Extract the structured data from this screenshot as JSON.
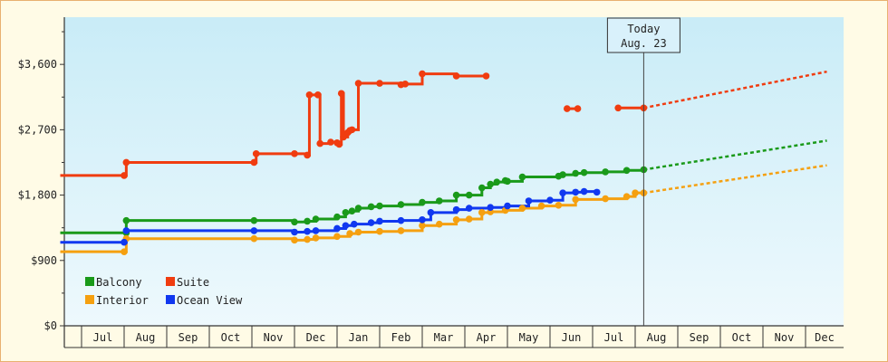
{
  "chart_data": {
    "type": "line",
    "title": "",
    "xlabel": "",
    "ylabel": "",
    "y_ticks": [
      "$0",
      "$900",
      "$1,800",
      "$2,700",
      "$3,600"
    ],
    "ylim": [
      0,
      4250
    ],
    "x_domain_months": [
      5.5,
      17.6
    ],
    "months": [
      {
        "label": "Jul",
        "idx": 6
      },
      {
        "label": "Aug",
        "idx": 7
      },
      {
        "label": "Sep",
        "idx": 8
      },
      {
        "label": "Oct",
        "idx": 9
      },
      {
        "label": "Nov",
        "idx": 10
      },
      {
        "label": "Dec",
        "idx": 11
      },
      {
        "label": "Jan",
        "idx": 12
      },
      {
        "label": "Feb",
        "idx": 13
      },
      {
        "label": "Mar",
        "idx": 14
      },
      {
        "label": "Apr",
        "idx": 15
      },
      {
        "label": "May",
        "idx": 16
      },
      {
        "label": "Jun",
        "idx": 17
      },
      {
        "label": "Jul",
        "idx": 18
      },
      {
        "label": "Aug",
        "idx": 19
      },
      {
        "label": "Sep",
        "idx": 20
      },
      {
        "label": "Oct",
        "idx": 21
      },
      {
        "label": "Nov",
        "idx": 22
      },
      {
        "label": "Dec",
        "idx": 23
      }
    ],
    "today": {
      "label": "Today",
      "date": "Aug. 23",
      "idx": 19.2
    },
    "legend_position": "bottom-left",
    "series": [
      {
        "name": "Balcony",
        "color": "#1a9a1a",
        "points": [
          [
            5.5,
            1280
          ],
          [
            7.05,
            1280
          ],
          [
            7.05,
            1450
          ],
          [
            10.05,
            1450
          ],
          [
            11.0,
            1430
          ],
          [
            11.3,
            1440
          ],
          [
            11.5,
            1470
          ],
          [
            12.0,
            1500
          ],
          [
            12.2,
            1560
          ],
          [
            12.35,
            1580
          ],
          [
            12.5,
            1620
          ],
          [
            12.8,
            1640
          ],
          [
            13.0,
            1650
          ],
          [
            13.5,
            1670
          ],
          [
            14.0,
            1700
          ],
          [
            14.4,
            1720
          ],
          [
            14.8,
            1800
          ],
          [
            15.1,
            1800
          ],
          [
            15.4,
            1900
          ],
          [
            15.6,
            1950
          ],
          [
            15.75,
            1980
          ],
          [
            15.95,
            2000
          ],
          [
            16.0,
            1990
          ],
          [
            16.35,
            2050
          ],
          [
            17.2,
            2060
          ],
          [
            17.3,
            2080
          ],
          [
            17.6,
            2100
          ],
          [
            17.8,
            2110
          ],
          [
            18.3,
            2120
          ],
          [
            18.8,
            2140
          ],
          [
            19.2,
            2150
          ]
        ],
        "forecast": [
          [
            19.2,
            2150
          ],
          [
            23.5,
            2550
          ]
        ]
      },
      {
        "name": "Suite",
        "color": "#f03c10",
        "points": [
          [
            5.5,
            2070
          ],
          [
            7.0,
            2070
          ],
          [
            7.05,
            2250
          ],
          [
            10.05,
            2250
          ],
          [
            10.1,
            2370
          ],
          [
            11.0,
            2370
          ],
          [
            11.3,
            2350
          ],
          [
            11.35,
            3180
          ],
          [
            11.55,
            3180
          ],
          [
            11.6,
            2510
          ],
          [
            11.85,
            2530
          ],
          [
            12.0,
            2520
          ],
          [
            12.05,
            2500
          ],
          [
            12.1,
            3200
          ],
          [
            12.15,
            2600
          ],
          [
            12.25,
            2660
          ],
          [
            12.3,
            2690
          ],
          [
            12.35,
            2700
          ],
          [
            12.5,
            3340
          ],
          [
            13.0,
            3340
          ],
          [
            13.5,
            3320
          ],
          [
            13.6,
            3330
          ],
          [
            14.0,
            3470
          ],
          [
            14.8,
            3440
          ],
          [
            15.5,
            3440
          ]
        ],
        "segment2": [
          [
            17.4,
            2990
          ],
          [
            17.65,
            2990
          ]
        ],
        "segment3": [
          [
            18.6,
            3000
          ],
          [
            19.2,
            3000
          ]
        ],
        "forecast": [
          [
            19.2,
            3000
          ],
          [
            23.5,
            3500
          ]
        ]
      },
      {
        "name": "Interior",
        "color": "#f5a010",
        "points": [
          [
            5.5,
            1020
          ],
          [
            7.0,
            1020
          ],
          [
            7.05,
            1200
          ],
          [
            10.05,
            1200
          ],
          [
            11.0,
            1180
          ],
          [
            11.3,
            1190
          ],
          [
            11.5,
            1210
          ],
          [
            12.0,
            1230
          ],
          [
            12.3,
            1270
          ],
          [
            12.5,
            1290
          ],
          [
            13.0,
            1300
          ],
          [
            13.5,
            1310
          ],
          [
            14.0,
            1380
          ],
          [
            14.4,
            1400
          ],
          [
            14.8,
            1460
          ],
          [
            15.1,
            1470
          ],
          [
            15.4,
            1560
          ],
          [
            15.6,
            1570
          ],
          [
            15.95,
            1590
          ],
          [
            16.35,
            1620
          ],
          [
            16.8,
            1650
          ],
          [
            17.2,
            1660
          ],
          [
            17.6,
            1740
          ],
          [
            18.3,
            1750
          ],
          [
            18.8,
            1780
          ],
          [
            19.0,
            1830
          ],
          [
            19.2,
            1830
          ]
        ],
        "forecast": [
          [
            19.2,
            1830
          ],
          [
            23.5,
            2210
          ]
        ]
      },
      {
        "name": "Ocean View",
        "color": "#1038f0",
        "points": [
          [
            5.5,
            1150
          ],
          [
            7.0,
            1150
          ],
          [
            7.05,
            1310
          ],
          [
            10.05,
            1310
          ],
          [
            11.0,
            1290
          ],
          [
            11.3,
            1300
          ],
          [
            11.5,
            1310
          ],
          [
            12.0,
            1340
          ],
          [
            12.2,
            1380
          ],
          [
            12.4,
            1400
          ],
          [
            12.8,
            1420
          ],
          [
            13.0,
            1440
          ],
          [
            13.5,
            1450
          ],
          [
            14.0,
            1460
          ],
          [
            14.2,
            1560
          ],
          [
            14.8,
            1600
          ],
          [
            15.1,
            1620
          ],
          [
            15.6,
            1630
          ],
          [
            16.0,
            1650
          ],
          [
            16.5,
            1720
          ],
          [
            17.0,
            1730
          ],
          [
            17.3,
            1830
          ],
          [
            17.6,
            1840
          ],
          [
            17.8,
            1850
          ],
          [
            18.1,
            1840
          ]
        ]
      }
    ]
  }
}
